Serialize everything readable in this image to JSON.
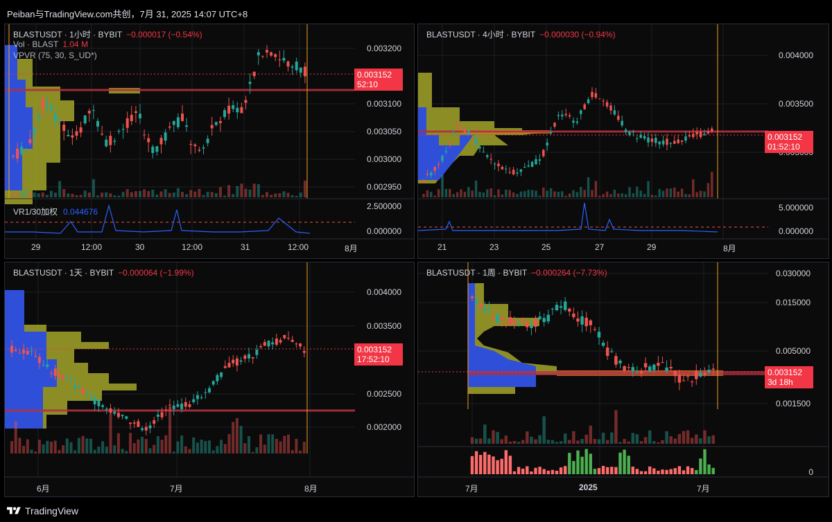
{
  "header": {
    "title": "Peiban与TradingView.com共创，7月 31, 2025 14:07 UTC+8"
  },
  "footer": {
    "brand": "TradingView"
  },
  "colors": {
    "up": "#26a69a",
    "down": "#ef5350",
    "tag": "#f23645",
    "vr": "#2962ff",
    "vprofile": "#a5a52a",
    "vblue": "#2f4fd8",
    "orange": "#f0a020"
  },
  "panels": [
    {
      "legend": {
        "symbol": "BLASTUSDT · 1小时 · BYBIT",
        "change": "−0.000017 (−0.54%)"
      },
      "extra_legend": [
        {
          "label": "Vol · BLAST",
          "value": "1.04 M"
        },
        {
          "label": "VPVR (75, 30, S_UD*)",
          "value": ""
        }
      ],
      "price_axis": [
        "0.003200",
        "0.003100",
        "0.003050",
        "0.003000",
        "0.002950"
      ],
      "price_tag": {
        "price": "0.003152",
        "timer": "52:10"
      },
      "indicator": {
        "label": "VR1/30加权",
        "value": "0.044676",
        "axis": [
          "2.500000",
          "0.000000"
        ]
      },
      "x_axis": [
        "29",
        "12:00",
        "30",
        "12:00",
        "31",
        "12:00",
        "8月"
      ]
    },
    {
      "legend": {
        "symbol": "BLASTUSDT · 4小时 · BYBIT",
        "change": "−0.000030 (−0.94%)"
      },
      "price_axis": [
        "0.004000",
        "0.003500",
        "0.003000"
      ],
      "price_tag": {
        "price": "0.003152",
        "timer": "01:52:10"
      },
      "indicator": {
        "axis": [
          "5.000000",
          "0.000000"
        ]
      },
      "x_axis": [
        "21",
        "23",
        "25",
        "27",
        "29",
        "8月"
      ]
    },
    {
      "legend": {
        "symbol": "BLASTUSDT · 1天 · BYBIT",
        "change": "−0.000064 (−1.99%)"
      },
      "price_axis": [
        "0.004000",
        "0.003500",
        "0.002500",
        "0.002000"
      ],
      "price_tag": {
        "price": "0.003152",
        "timer": "17:52:10"
      },
      "x_axis": [
        "6月",
        "7月",
        "8月"
      ]
    },
    {
      "legend": {
        "symbol": "BLASTUSDT · 1周 · BYBIT",
        "change": "−0.000264 (−7.73%)"
      },
      "price_axis": [
        "0.030000",
        "0.015000",
        "0.005000",
        "0.001500"
      ],
      "price_tag": {
        "price": "0.003152",
        "timer": "3d 18h"
      },
      "indicator": {
        "axis": [
          "0"
        ]
      },
      "x_axis": [
        "7月",
        "2025",
        "7月"
      ]
    }
  ]
}
